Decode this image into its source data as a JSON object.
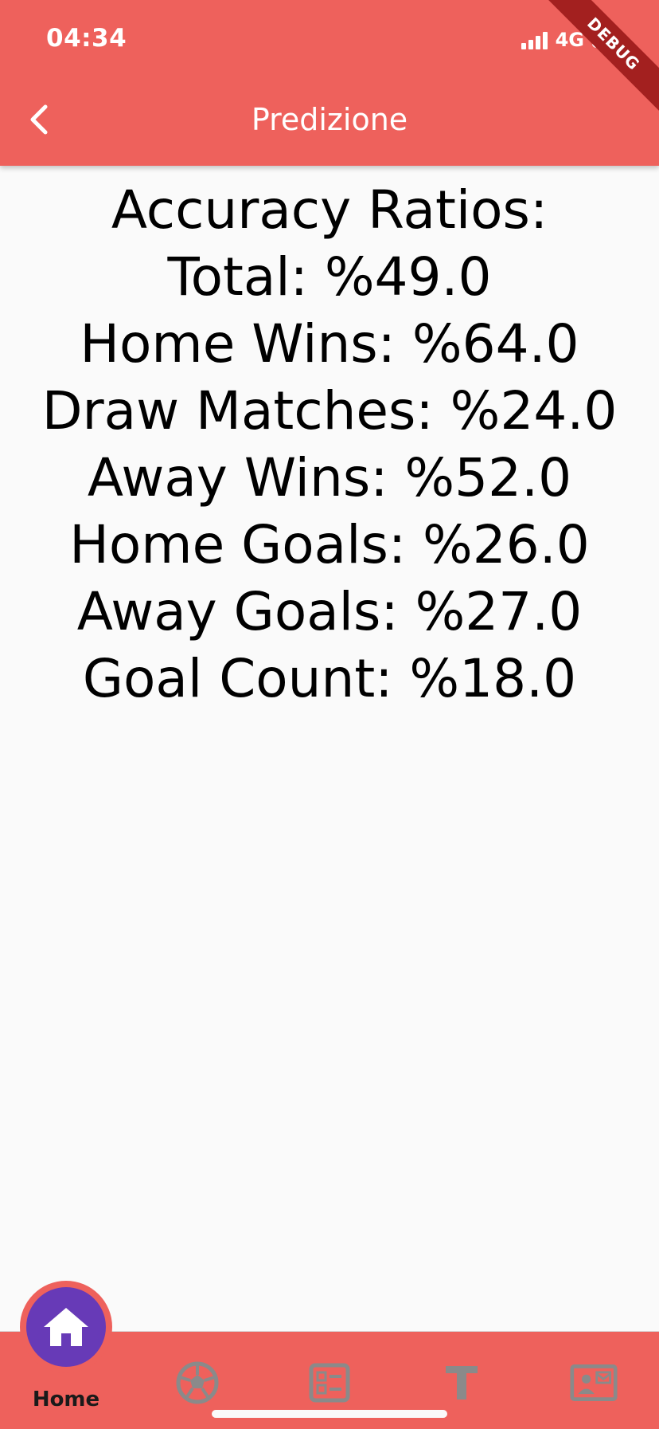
{
  "status_bar": {
    "time": "04:34",
    "network": "4G",
    "signal_icon": "cellular-signal-icon",
    "battery_icon": "battery-charging-icon"
  },
  "debug_banner": "DEBUG",
  "app_bar": {
    "title": "Predizione",
    "back_icon": "chevron-left-icon",
    "background_color": "#ee615c"
  },
  "stats": {
    "heading": "Accuracy Ratios:",
    "lines": [
      "Total: %49.0",
      "Home Wins: %64.0",
      "Draw Matches: %24.0",
      "Away Wins: %52.0",
      "Home Goals: %26.0",
      "Away Goals: %27.0",
      "Goal Count: %18.0"
    ]
  },
  "bottom_nav": {
    "items": [
      {
        "label": "Home",
        "icon": "home-icon",
        "active": true
      },
      {
        "label": "",
        "icon": "soccer-ball-icon",
        "active": false
      },
      {
        "label": "",
        "icon": "list-layout-icon",
        "active": false
      },
      {
        "label": "",
        "icon": "text-t-icon",
        "active": false
      },
      {
        "label": "",
        "icon": "contact-card-icon",
        "active": false
      }
    ],
    "active_color": "#673ab7",
    "inactive_icon_color": "#8a8a8a"
  }
}
